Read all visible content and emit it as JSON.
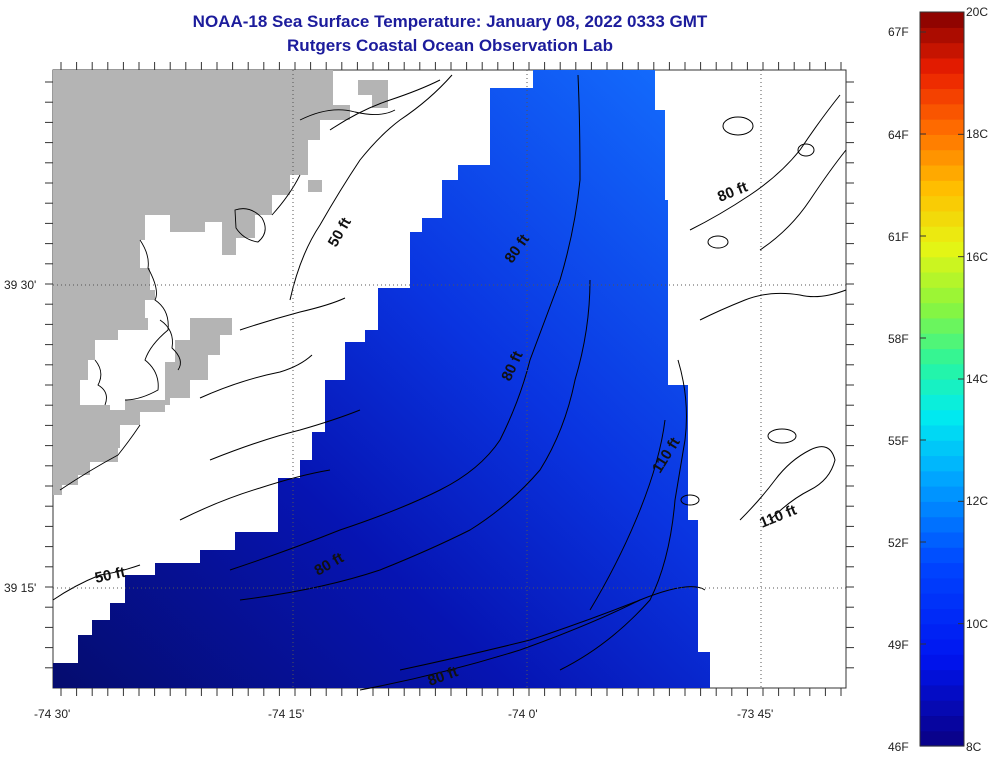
{
  "header": {
    "title": "NOAA-18 Sea Surface Temperature:  January 08, 2022 0333 GMT",
    "subtitle": "Rutgers Coastal Ocean Observation Lab"
  },
  "map": {
    "x_ticks": [
      "-74 30'",
      "-74 15'",
      "-74 0'",
      "-73 45'"
    ],
    "y_ticks": [
      "39 30'",
      "39 15'"
    ],
    "depth_labels": [
      "50 ft",
      "50 ft",
      "80 ft",
      "80 ft",
      "80 ft",
      "80 ft",
      "80 ft",
      "110 ft",
      "110 ft"
    ],
    "colors": {
      "land": "#b4b4b4",
      "water_dark": "#050a78",
      "water_light": "#0d5cff",
      "no_data": "#ffffff"
    }
  },
  "colorbar": {
    "fahrenheit": [
      "67F",
      "64F",
      "61F",
      "58F",
      "55F",
      "52F",
      "49F",
      "46F"
    ],
    "celsius": [
      "20C",
      "18C",
      "16C",
      "14C",
      "12C",
      "10C",
      "8C"
    ]
  }
}
